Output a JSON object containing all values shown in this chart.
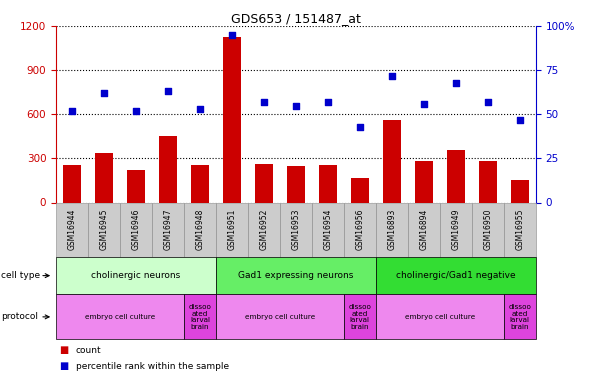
{
  "title": "GDS653 / 151487_at",
  "samples": [
    "GSM16944",
    "GSM16945",
    "GSM16946",
    "GSM16947",
    "GSM16948",
    "GSM16951",
    "GSM16952",
    "GSM16953",
    "GSM16954",
    "GSM16956",
    "GSM16893",
    "GSM16894",
    "GSM16949",
    "GSM16950",
    "GSM16955"
  ],
  "counts": [
    255,
    335,
    220,
    450,
    255,
    1130,
    265,
    250,
    255,
    170,
    565,
    285,
    360,
    285,
    155
  ],
  "percentiles": [
    52,
    62,
    52,
    63,
    53,
    95,
    57,
    55,
    57,
    43,
    72,
    56,
    68,
    57,
    47
  ],
  "ylim_left": [
    0,
    1200
  ],
  "ylim_right": [
    0,
    100
  ],
  "yticks_left": [
    0,
    300,
    600,
    900,
    1200
  ],
  "yticks_right": [
    0,
    25,
    50,
    75,
    100
  ],
  "bar_color": "#cc0000",
  "dot_color": "#0000cc",
  "cell_type_groups": [
    {
      "label": "cholinergic neurons",
      "start": 0,
      "end": 5,
      "color": "#ccffcc"
    },
    {
      "label": "Gad1 expressing neurons",
      "start": 5,
      "end": 10,
      "color": "#66ee66"
    },
    {
      "label": "cholinergic/Gad1 negative",
      "start": 10,
      "end": 15,
      "color": "#33dd33"
    }
  ],
  "protocol_groups": [
    {
      "label": "embryo cell culture",
      "start": 0,
      "end": 4,
      "color": "#ee88ee"
    },
    {
      "label": "dissoo\nated\nlarval\nbrain",
      "start": 4,
      "end": 5,
      "color": "#dd44dd"
    },
    {
      "label": "embryo cell culture",
      "start": 5,
      "end": 9,
      "color": "#ee88ee"
    },
    {
      "label": "dissoo\nated\nlarval\nbrain",
      "start": 9,
      "end": 10,
      "color": "#dd44dd"
    },
    {
      "label": "embryo cell culture",
      "start": 10,
      "end": 14,
      "color": "#ee88ee"
    },
    {
      "label": "dissoo\nated\nlarval\nbrain",
      "start": 14,
      "end": 15,
      "color": "#dd44dd"
    }
  ],
  "bar_color_str": "#cc0000",
  "dot_color_str": "#0000cc",
  "left_tick_color": "#cc0000",
  "right_tick_color": "#0000cc",
  "cell_type_label": "cell type",
  "protocol_label": "protocol",
  "legend_count": "count",
  "legend_pct": "percentile rank within the sample",
  "xtick_bg": "#cccccc",
  "xtick_border": "#888888"
}
